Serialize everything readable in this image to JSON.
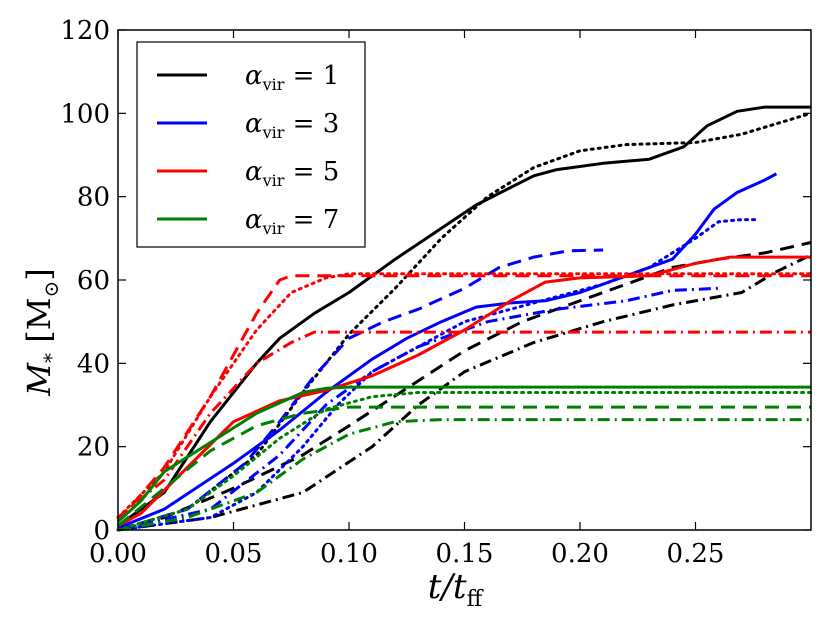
{
  "chart_data": {
    "type": "line",
    "title": "",
    "xlabel": "t/t_ff",
    "ylabel": "M_* [M_⊙]",
    "xlim": [
      0.0,
      0.3
    ],
    "ylim": [
      0,
      120
    ],
    "grid": false,
    "legend_position": "top-left",
    "x_ticks": [
      "0.00",
      "0.05",
      "0.10",
      "0.15",
      "0.20",
      "0.25"
    ],
    "x_tick_values": [
      0.0,
      0.05,
      0.1,
      0.15,
      0.2,
      0.25
    ],
    "y_ticks": [
      "0",
      "20",
      "40",
      "60",
      "80",
      "100",
      "120"
    ],
    "y_tick_values": [
      0,
      20,
      40,
      60,
      80,
      100,
      120
    ],
    "legend": [
      {
        "symbol": "α",
        "subscript": "vir",
        "value": "1",
        "color": "#000000"
      },
      {
        "symbol": "α",
        "subscript": "vir",
        "value": "3",
        "color": "#0000ff"
      },
      {
        "symbol": "α",
        "subscript": "vir",
        "value": "5",
        "color": "#ff0000"
      },
      {
        "symbol": "α",
        "subscript": "vir",
        "value": "7",
        "color": "#008000"
      }
    ],
    "series": [
      {
        "name": "α_vir=1 solid",
        "color": "#000000",
        "dash": "solid",
        "points": [
          [
            0,
            1
          ],
          [
            0.02,
            9
          ],
          [
            0.04,
            26
          ],
          [
            0.06,
            40
          ],
          [
            0.07,
            46
          ],
          [
            0.085,
            52
          ],
          [
            0.1,
            57
          ],
          [
            0.12,
            65
          ],
          [
            0.155,
            78
          ],
          [
            0.18,
            85
          ],
          [
            0.19,
            86.5
          ],
          [
            0.21,
            88
          ],
          [
            0.23,
            89
          ],
          [
            0.245,
            92
          ],
          [
            0.255,
            97
          ],
          [
            0.268,
            100.5
          ],
          [
            0.28,
            101.5
          ],
          [
            0.3,
            101.5
          ]
        ]
      },
      {
        "name": "α_vir=1 dashed",
        "color": "#000000",
        "dash": "dashed",
        "points": [
          [
            0,
            0
          ],
          [
            0.02,
            3
          ],
          [
            0.05,
            10
          ],
          [
            0.08,
            18
          ],
          [
            0.1,
            25
          ],
          [
            0.125,
            34
          ],
          [
            0.15,
            43
          ],
          [
            0.175,
            50
          ],
          [
            0.2,
            55
          ],
          [
            0.22,
            59
          ],
          [
            0.24,
            63
          ],
          [
            0.26,
            65
          ],
          [
            0.28,
            66.5
          ],
          [
            0.3,
            69
          ]
        ]
      },
      {
        "name": "α_vir=1 dotted",
        "color": "#000000",
        "dash": "dotted",
        "points": [
          [
            0,
            0
          ],
          [
            0.03,
            5
          ],
          [
            0.06,
            18
          ],
          [
            0.08,
            33
          ],
          [
            0.1,
            47
          ],
          [
            0.12,
            58
          ],
          [
            0.14,
            70
          ],
          [
            0.16,
            80
          ],
          [
            0.18,
            87
          ],
          [
            0.2,
            91
          ],
          [
            0.22,
            92.5
          ],
          [
            0.25,
            93
          ],
          [
            0.27,
            95
          ],
          [
            0.3,
            100
          ]
        ]
      },
      {
        "name": "α_vir=1 dashdot",
        "color": "#000000",
        "dash": "dashdot",
        "points": [
          [
            0,
            0
          ],
          [
            0.04,
            3
          ],
          [
            0.08,
            9
          ],
          [
            0.11,
            20
          ],
          [
            0.13,
            30
          ],
          [
            0.15,
            38
          ],
          [
            0.18,
            45
          ],
          [
            0.21,
            50
          ],
          [
            0.24,
            54
          ],
          [
            0.27,
            57
          ],
          [
            0.285,
            62
          ],
          [
            0.3,
            66
          ]
        ]
      },
      {
        "name": "α_vir=3 solid",
        "color": "#0000ff",
        "dash": "solid",
        "points": [
          [
            0,
            0.5
          ],
          [
            0.02,
            5
          ],
          [
            0.05,
            16
          ],
          [
            0.07,
            24
          ],
          [
            0.09,
            33
          ],
          [
            0.11,
            41
          ],
          [
            0.125,
            46
          ],
          [
            0.14,
            50
          ],
          [
            0.155,
            53.5
          ],
          [
            0.17,
            54.5
          ],
          [
            0.185,
            55
          ],
          [
            0.2,
            57
          ],
          [
            0.22,
            61
          ],
          [
            0.24,
            65
          ],
          [
            0.25,
            71
          ],
          [
            0.258,
            77
          ],
          [
            0.268,
            81
          ],
          [
            0.28,
            84
          ],
          [
            0.285,
            85.5
          ]
        ]
      },
      {
        "name": "α_vir=3 dashed",
        "color": "#0000ff",
        "dash": "dashed",
        "points": [
          [
            0,
            0
          ],
          [
            0.03,
            5
          ],
          [
            0.055,
            16
          ],
          [
            0.07,
            26
          ],
          [
            0.085,
            37
          ],
          [
            0.1,
            46
          ],
          [
            0.115,
            50
          ],
          [
            0.13,
            53
          ],
          [
            0.15,
            58
          ],
          [
            0.165,
            63
          ],
          [
            0.18,
            65.5
          ],
          [
            0.195,
            67
          ],
          [
            0.21,
            67.2
          ]
        ]
      },
      {
        "name": "α_vir=3 dotted",
        "color": "#0000ff",
        "dash": "dotted",
        "points": [
          [
            0,
            0
          ],
          [
            0.04,
            3
          ],
          [
            0.06,
            9
          ],
          [
            0.08,
            20
          ],
          [
            0.095,
            30
          ],
          [
            0.11,
            38
          ],
          [
            0.13,
            44
          ],
          [
            0.15,
            50
          ],
          [
            0.17,
            53
          ],
          [
            0.19,
            56
          ],
          [
            0.21,
            59
          ],
          [
            0.23,
            63
          ],
          [
            0.25,
            70
          ],
          [
            0.26,
            74
          ],
          [
            0.27,
            74.5
          ],
          [
            0.277,
            74.5
          ]
        ]
      },
      {
        "name": "α_vir=3 dashdot",
        "color": "#0000ff",
        "dash": "dashdot",
        "points": [
          [
            0,
            0
          ],
          [
            0.04,
            5
          ],
          [
            0.07,
            18
          ],
          [
            0.09,
            30
          ],
          [
            0.11,
            38
          ],
          [
            0.13,
            44
          ],
          [
            0.16,
            50
          ],
          [
            0.19,
            53
          ],
          [
            0.22,
            55
          ],
          [
            0.24,
            57.5
          ],
          [
            0.26,
            58
          ]
        ]
      },
      {
        "name": "α_vir=5 solid",
        "color": "#ff0000",
        "dash": "solid",
        "points": [
          [
            0,
            1
          ],
          [
            0.01,
            4
          ],
          [
            0.03,
            15
          ],
          [
            0.05,
            26
          ],
          [
            0.07,
            31
          ],
          [
            0.09,
            33.5
          ],
          [
            0.11,
            37
          ],
          [
            0.13,
            42
          ],
          [
            0.15,
            48
          ],
          [
            0.17,
            55
          ],
          [
            0.185,
            59.5
          ],
          [
            0.2,
            60.5
          ],
          [
            0.23,
            61
          ],
          [
            0.25,
            64
          ],
          [
            0.265,
            65.5
          ],
          [
            0.3,
            65.5
          ]
        ]
      },
      {
        "name": "α_vir=5 dashed",
        "color": "#ff0000",
        "dash": "dashed",
        "points": [
          [
            0,
            2
          ],
          [
            0.02,
            15
          ],
          [
            0.04,
            32
          ],
          [
            0.06,
            52
          ],
          [
            0.07,
            60
          ],
          [
            0.075,
            61
          ],
          [
            0.3,
            61
          ]
        ]
      },
      {
        "name": "α_vir=5 dotted",
        "color": "#ff0000",
        "dash": "dotted",
        "points": [
          [
            0,
            3
          ],
          [
            0.02,
            14
          ],
          [
            0.04,
            32
          ],
          [
            0.06,
            48
          ],
          [
            0.075,
            57
          ],
          [
            0.09,
            60.5
          ],
          [
            0.1,
            61.5
          ],
          [
            0.3,
            61.5
          ]
        ]
      },
      {
        "name": "α_vir=5 dashdot",
        "color": "#ff0000",
        "dash": "dashdot",
        "points": [
          [
            0,
            3
          ],
          [
            0.02,
            12
          ],
          [
            0.04,
            28
          ],
          [
            0.06,
            40
          ],
          [
            0.075,
            45
          ],
          [
            0.085,
            47.5
          ],
          [
            0.3,
            47.5
          ]
        ]
      },
      {
        "name": "α_vir=7 solid",
        "color": "#008000",
        "dash": "solid",
        "points": [
          [
            0,
            2
          ],
          [
            0.01,
            7
          ],
          [
            0.02,
            14
          ],
          [
            0.04,
            21
          ],
          [
            0.06,
            28
          ],
          [
            0.08,
            33
          ],
          [
            0.09,
            34
          ],
          [
            0.1,
            34.3
          ],
          [
            0.3,
            34.3
          ]
        ]
      },
      {
        "name": "α_vir=7 dashed",
        "color": "#008000",
        "dash": "dashed",
        "points": [
          [
            0,
            1
          ],
          [
            0.02,
            10
          ],
          [
            0.04,
            19
          ],
          [
            0.06,
            25
          ],
          [
            0.08,
            28
          ],
          [
            0.1,
            29.5
          ],
          [
            0.3,
            29.5
          ]
        ]
      },
      {
        "name": "α_vir=7 dotted",
        "color": "#008000",
        "dash": "dotted",
        "points": [
          [
            0,
            0
          ],
          [
            0.03,
            5
          ],
          [
            0.05,
            13
          ],
          [
            0.07,
            22
          ],
          [
            0.09,
            29
          ],
          [
            0.11,
            32
          ],
          [
            0.13,
            33
          ],
          [
            0.3,
            33
          ]
        ]
      },
      {
        "name": "α_vir=7 dashdot",
        "color": "#008000",
        "dash": "dashdot",
        "points": [
          [
            0,
            0
          ],
          [
            0.03,
            3
          ],
          [
            0.06,
            9
          ],
          [
            0.08,
            17
          ],
          [
            0.1,
            23
          ],
          [
            0.12,
            26
          ],
          [
            0.14,
            26.5
          ],
          [
            0.3,
            26.5
          ]
        ]
      }
    ]
  }
}
